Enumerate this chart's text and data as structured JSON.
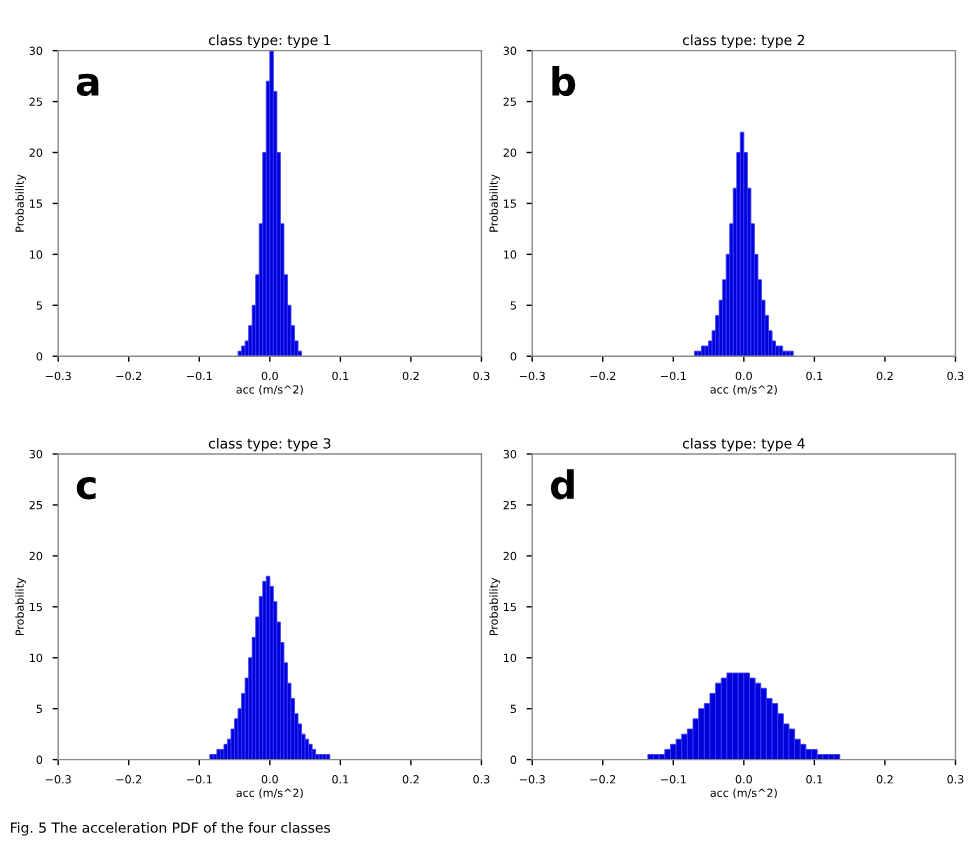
{
  "chart_data": [
    {
      "type": "histogram",
      "title": "class type: type 1",
      "xlabel": "acc (m/s^2)",
      "ylabel": "Probability",
      "annotations": [
        "a"
      ],
      "color": "#0000d8",
      "grid": false,
      "bins": [
        -0.045,
        -0.04,
        -0.035,
        -0.03,
        -0.025,
        -0.02,
        -0.015,
        -0.01,
        -0.005,
        0,
        0.005,
        0.01,
        0.015,
        0.02,
        0.025,
        0.03,
        0.035,
        0.04,
        0.045
      ],
      "values": [
        0.5,
        1,
        1.5,
        3,
        5,
        8,
        13,
        20,
        27,
        30,
        26,
        20,
        13,
        8,
        5,
        3,
        1.5,
        0.5
      ],
      "xlim": [
        -0.3,
        0.3
      ],
      "xticks": [
        {
          "value": -0.3,
          "label": "−0.3"
        },
        {
          "value": -0.2,
          "label": "−0.2"
        },
        {
          "value": -0.1,
          "label": "−0.1"
        },
        {
          "value": 0,
          "label": "0.0"
        },
        0.1,
        0.2,
        0.3
      ],
      "ylim": [
        0,
        30
      ],
      "yticks": [
        0,
        5,
        10,
        15,
        20,
        25,
        30
      ]
    },
    {
      "type": "histogram",
      "title": "class type: type 2",
      "xlabel": "acc (m/s^2)",
      "ylabel": "Probability",
      "annotations": [
        "b"
      ],
      "color": "#0000d8",
      "grid": false,
      "bins": [
        -0.07,
        -0.065,
        -0.06,
        -0.055,
        -0.05,
        -0.045,
        -0.04,
        -0.035,
        -0.03,
        -0.025,
        -0.02,
        -0.015,
        -0.01,
        -0.005,
        0,
        0.005,
        0.01,
        0.015,
        0.02,
        0.025,
        0.03,
        0.035,
        0.04,
        0.045,
        0.05,
        0.055,
        0.06,
        0.065,
        0.07
      ],
      "values": [
        0.5,
        0.5,
        1,
        1,
        1.5,
        2.5,
        4,
        5.5,
        7.5,
        10,
        13,
        16.5,
        20,
        22,
        20,
        16.5,
        13,
        10,
        7.5,
        5.5,
        4,
        2.5,
        1.5,
        1,
        1,
        0.5,
        0.5,
        0.5
      ],
      "xlim": [
        -0.3,
        0.3
      ],
      "xticks": [
        {
          "value": -0.3,
          "label": "−0.3"
        },
        {
          "value": -0.2,
          "label": "−0.2"
        },
        {
          "value": -0.1,
          "label": "−0.1"
        },
        {
          "value": 0,
          "label": "0.0"
        },
        0.1,
        0.2,
        0.3
      ],
      "ylim": [
        0,
        30
      ],
      "yticks": [
        0,
        5,
        10,
        15,
        20,
        25,
        30
      ]
    },
    {
      "type": "histogram",
      "title": "class type: type 3",
      "xlabel": "acc (m/s^2)",
      "ylabel": "Probability",
      "annotations": [
        "c",
        "Fig. 5 The acceleration PDF of the four classes"
      ],
      "color": "#0000d8",
      "grid": false,
      "bins": [
        -0.085,
        -0.08,
        -0.075,
        -0.07,
        -0.065,
        -0.06,
        -0.055,
        -0.05,
        -0.045,
        -0.04,
        -0.035,
        -0.03,
        -0.025,
        -0.02,
        -0.015,
        -0.01,
        -0.005,
        0,
        0.005,
        0.01,
        0.015,
        0.02,
        0.025,
        0.03,
        0.035,
        0.04,
        0.045,
        0.05,
        0.055,
        0.06,
        0.065,
        0.07,
        0.075,
        0.08,
        0.085
      ],
      "values": [
        0.5,
        0.5,
        1,
        1,
        1.5,
        2,
        3,
        4,
        5,
        6.5,
        8,
        10,
        12,
        14,
        16,
        17.5,
        18,
        17,
        15.5,
        13.5,
        11.5,
        9.5,
        7.5,
        6,
        4.5,
        3.5,
        2.5,
        2,
        1.5,
        1,
        0.5,
        0.5,
        0.5,
        0.5
      ],
      "xlim": [
        -0.3,
        0.3
      ],
      "xticks": [
        {
          "value": -0.3,
          "label": "−0.3"
        },
        {
          "value": -0.2,
          "label": "−0.2"
        },
        {
          "value": -0.1,
          "label": "−0.1"
        },
        {
          "value": 0,
          "label": "0.0"
        },
        0.1,
        0.2,
        0.3
      ],
      "ylim": [
        0,
        30
      ],
      "yticks": [
        0,
        5,
        10,
        15,
        20,
        25,
        30
      ]
    },
    {
      "type": "histogram",
      "title": "class type: type 4",
      "xlabel": "acc (m/s^2)",
      "ylabel": "Probability",
      "annotations": [
        "d"
      ],
      "color": "#0000d8",
      "grid": false,
      "bins": [
        -0.136,
        -0.128,
        -0.12,
        -0.112,
        -0.104,
        -0.096,
        -0.088,
        -0.08,
        -0.072,
        -0.064,
        -0.056,
        -0.048,
        -0.04,
        -0.032,
        -0.024,
        -0.016,
        -0.008,
        0,
        0.008,
        0.016,
        0.024,
        0.032,
        0.04,
        0.048,
        0.056,
        0.064,
        0.072,
        0.08,
        0.088,
        0.096,
        0.104,
        0.112,
        0.12,
        0.128,
        0.136
      ],
      "values": [
        0.5,
        0.5,
        0.5,
        1,
        1.5,
        2,
        2.5,
        3,
        4,
        5,
        5.5,
        6.5,
        7.5,
        8,
        8.5,
        8.5,
        8.5,
        8.5,
        8,
        7.5,
        7,
        6,
        5.5,
        4.5,
        3.5,
        3,
        2,
        1.5,
        1,
        1,
        0.5,
        0.5,
        0.5,
        0.5
      ],
      "xlim": [
        -0.3,
        0.3
      ],
      "xticks": [
        {
          "value": -0.3,
          "label": "−0.3"
        },
        {
          "value": -0.2,
          "label": "−0.2"
        },
        {
          "value": -0.1,
          "label": "−0.1"
        },
        {
          "value": 0,
          "label": "0.0"
        },
        0.1,
        0.2,
        0.3
      ],
      "ylim": [
        0,
        30
      ],
      "yticks": [
        0,
        5,
        10,
        15,
        20,
        25,
        30
      ]
    }
  ]
}
